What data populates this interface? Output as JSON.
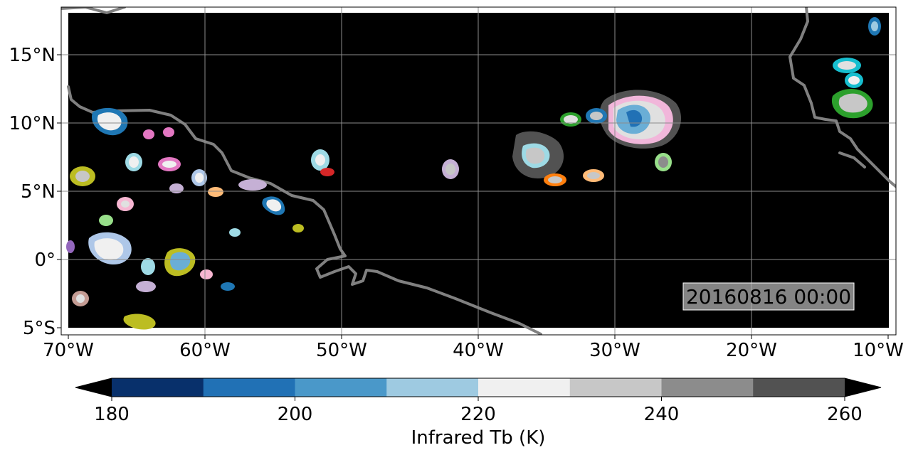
{
  "map": {
    "timestamp": "20160816 00:00",
    "longitude_ticks": [
      "70°W",
      "60°W",
      "50°W",
      "40°W",
      "30°W",
      "20°W",
      "10°W"
    ],
    "latitude_ticks": [
      "15°N",
      "10°N",
      "5°N",
      "0°",
      "5°S"
    ],
    "colors": {
      "ocean": "#000000",
      "coastline": "#808080",
      "gridline": "#8c8c8c"
    },
    "cloud_regions": [
      {
        "name": "cluster-35W-11N",
        "outline": "#f1b6da",
        "core": "#4f9bd0"
      },
      {
        "name": "cluster-12W-12N",
        "outline": "#2ca02c",
        "core": "#cfcfcf"
      },
      {
        "name": "cluster-13W-14N",
        "outline": "#17becf",
        "core": "#d9d9d9"
      },
      {
        "name": "cluster-10W-17N",
        "outline": "#1f77b4",
        "core": "#9ecae1"
      },
      {
        "name": "cluster-30W-8N",
        "outline": "#9edae5",
        "core": "#cfcfcf"
      },
      {
        "name": "cluster-66W-10N",
        "outline": "#1f77b4",
        "core": "#f0f0f0"
      },
      {
        "name": "cluster-66W-1N",
        "outline": "#aec7e8",
        "core": "#f0f0f0"
      },
      {
        "name": "cluster-60W-0N",
        "outline": "#bcbd22",
        "core": "#6aaed6"
      }
    ]
  },
  "colorbar": {
    "label": "Infrared Tb (K)",
    "tick_labels": [
      "180",
      "200",
      "220",
      "240",
      "260"
    ],
    "colors": [
      "#08306b",
      "#2171b5",
      "#4a98c9",
      "#9ecae1",
      "#f0f0f0",
      "#c7c7c7",
      "#8c8c8c",
      "#525252"
    ]
  }
}
